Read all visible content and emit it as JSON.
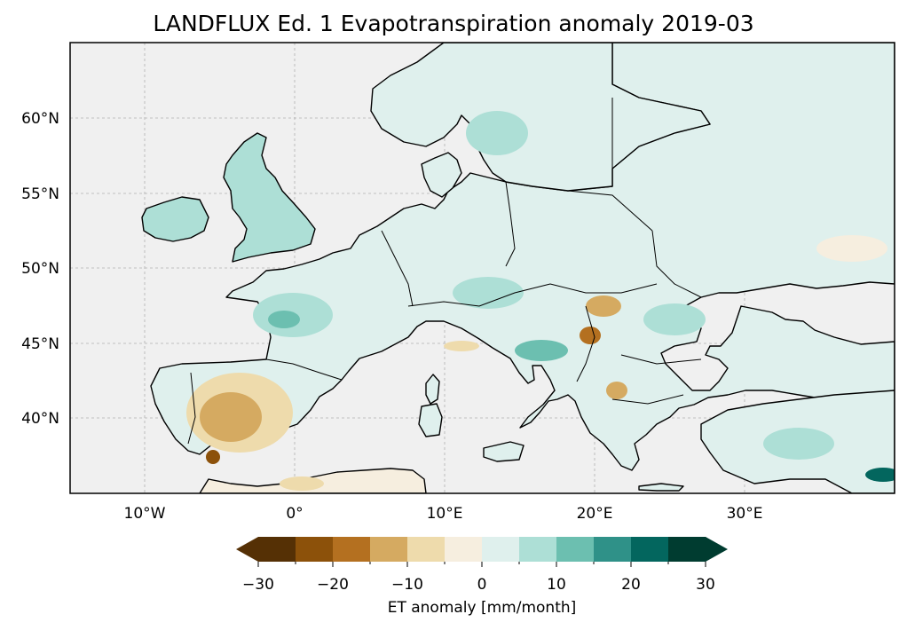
{
  "title": "LANDFLUX Ed. 1 Evapotranspiration anomaly 2019-03",
  "map": {
    "lon_range": [
      -15,
      40
    ],
    "lat_range": [
      35,
      65
    ],
    "gridlines": true,
    "lon_ticks": [
      "10°W",
      "0°",
      "10°E",
      "20°E",
      "30°E"
    ],
    "lat_ticks": [
      "60°N",
      "55°N",
      "50°N",
      "45°N",
      "40°N"
    ],
    "ocean_color": "#f0f0f0",
    "coastline_color": "#000000"
  },
  "colorbar": {
    "label": "ET anomaly [mm/month]",
    "ticks": [
      "−30",
      "−20",
      "−10",
      "0",
      "10",
      "20",
      "30"
    ],
    "levels": [
      -30,
      -25,
      -20,
      -15,
      -10,
      -5,
      0,
      5,
      10,
      15,
      20,
      25,
      30
    ],
    "extend": "both",
    "colors": [
      "#553005",
      "#8c510a",
      "#b47020",
      "#d5aa61",
      "#eedbac",
      "#f6eedf",
      "#dff0ed",
      "#addfd6",
      "#6cbfb0",
      "#2f9188",
      "#03665e",
      "#003c30"
    ]
  }
}
